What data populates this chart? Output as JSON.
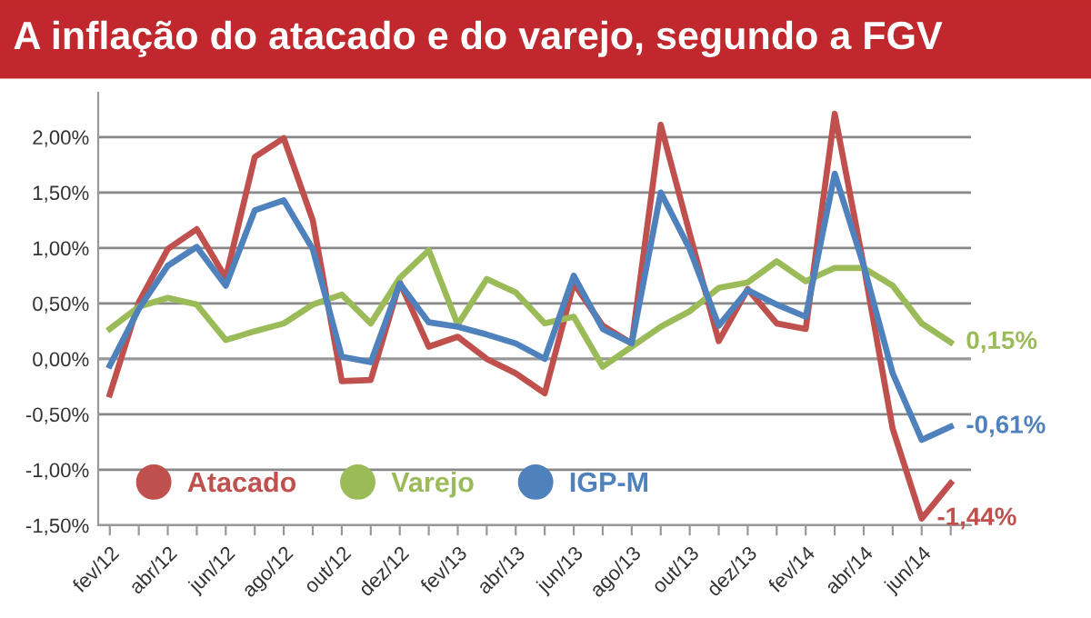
{
  "chart_data": {
    "type": "line",
    "title": "A inflação do atacado e do varejo, segundo a FGV",
    "categories": [
      "fev/12",
      null,
      "abr/12",
      null,
      "jun/12",
      null,
      "ago/12",
      null,
      "out/12",
      null,
      "dez/12",
      null,
      "fev/13",
      null,
      "abr/13",
      null,
      "jun/13",
      null,
      "ago/13",
      null,
      "out/13",
      null,
      "dez/13",
      null,
      "fev/14",
      null,
      "abr/14",
      null,
      "jun/14",
      null
    ],
    "series": [
      {
        "name": "Atacado",
        "color": "#c0504d",
        "values": [
          -0.32,
          0.51,
          0.99,
          1.17,
          0.73,
          1.82,
          1.99,
          1.25,
          -0.2,
          -0.19,
          0.69,
          0.11,
          0.2,
          0.0,
          -0.13,
          -0.31,
          0.68,
          0.3,
          0.14,
          2.11,
          1.13,
          0.16,
          0.63,
          0.32,
          0.27,
          2.21,
          0.84,
          -0.63,
          -1.44,
          -1.12
        ],
        "value_labels": [
          null,
          null,
          null,
          null,
          null,
          null,
          null,
          null,
          null,
          null,
          null,
          null,
          null,
          null,
          null,
          null,
          null,
          null,
          null,
          null,
          null,
          null,
          null,
          null,
          null,
          null,
          null,
          null,
          "-1,44%",
          null
        ]
      },
      {
        "name": "Varejo",
        "color": "#9bbb59",
        "values": [
          0.27,
          0.47,
          0.55,
          0.49,
          0.17,
          0.25,
          0.32,
          0.49,
          0.58,
          0.32,
          0.73,
          0.98,
          0.31,
          0.72,
          0.6,
          0.32,
          0.38,
          -0.07,
          0.11,
          0.29,
          0.43,
          0.64,
          0.69,
          0.88,
          0.7,
          0.82,
          0.82,
          0.66,
          0.32,
          0.15
        ],
        "value_labels": [
          null,
          null,
          null,
          null,
          null,
          null,
          null,
          null,
          null,
          null,
          null,
          null,
          null,
          null,
          null,
          null,
          null,
          null,
          null,
          null,
          null,
          null,
          null,
          null,
          null,
          null,
          null,
          null,
          null,
          "0,15%"
        ]
      },
      {
        "name": "IGP-M",
        "color": "#4f81bd",
        "values": [
          -0.06,
          0.45,
          0.84,
          1.01,
          0.66,
          1.34,
          1.43,
          0.99,
          0.02,
          -0.03,
          0.68,
          0.33,
          0.29,
          0.22,
          0.14,
          0.0,
          0.75,
          0.27,
          0.14,
          1.5,
          0.99,
          0.3,
          0.62,
          0.49,
          0.38,
          1.67,
          0.84,
          -0.13,
          -0.73,
          -0.61
        ],
        "value_labels": [
          null,
          null,
          null,
          null,
          null,
          null,
          null,
          null,
          null,
          null,
          null,
          null,
          null,
          null,
          null,
          null,
          null,
          null,
          null,
          null,
          null,
          null,
          null,
          null,
          null,
          null,
          null,
          null,
          null,
          "-0,61%"
        ]
      }
    ],
    "ylim": [
      -1.5,
      2.4
    ],
    "yticks": [
      {
        "value": -1.5,
        "label": "-1,50%"
      },
      {
        "value": -1.0,
        "label": "-1,00%"
      },
      {
        "value": -0.5,
        "label": "-0,50%"
      },
      {
        "value": 0.0,
        "label": "0,00%"
      },
      {
        "value": 0.5,
        "label": "0,50%"
      },
      {
        "value": 1.0,
        "label": "1,00%"
      },
      {
        "value": 1.5,
        "label": "1,50%"
      },
      {
        "value": 2.0,
        "label": "2,00%"
      }
    ],
    "grid": "y",
    "legend": "bottom left",
    "marker": "none",
    "line_style": "solid"
  }
}
